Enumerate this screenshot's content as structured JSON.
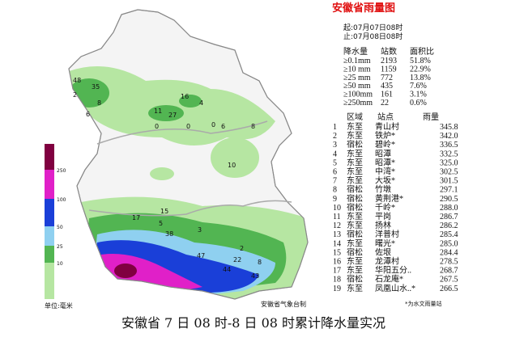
{
  "title": "安徽省雨量图",
  "period": {
    "start": "起:07月07日08时",
    "end": "止:07月08日08时"
  },
  "stats": {
    "header": [
      "降水量",
      "站数",
      "面积比"
    ],
    "rows": [
      [
        "≥0.1mm",
        "2193",
        "51.8%"
      ],
      [
        "≥10 mm",
        "1159",
        "22.9%"
      ],
      [
        "≥25 mm",
        "772",
        "13.8%"
      ],
      [
        "≥50 mm",
        "435",
        "7.6%"
      ],
      [
        "≥100mm",
        "161",
        "3.1%"
      ],
      [
        "≥250mm",
        "22",
        "0.6%"
      ]
    ]
  },
  "ranking": {
    "header": [
      "区域",
      "站点",
      "雨量"
    ],
    "rows": [
      [
        "1",
        "东至",
        "青山村",
        "345.8"
      ],
      [
        "2",
        "东至",
        "铁炉*",
        "342.0"
      ],
      [
        "3",
        "宿松",
        "碧岭*",
        "336.5"
      ],
      [
        "4",
        "东至",
        "昭潭",
        "332.5"
      ],
      [
        "5",
        "东至",
        "昭潭*",
        "325.0"
      ],
      [
        "6",
        "东至",
        "中湾*",
        "302.5"
      ],
      [
        "7",
        "东至",
        "大坂*",
        "301.5"
      ],
      [
        "8",
        "宿松",
        "竹墩",
        "297.1"
      ],
      [
        "9",
        "宿松",
        "黄荆港*",
        "290.5"
      ],
      [
        "10",
        "宿松",
        "千岭*",
        "288.0"
      ],
      [
        "11",
        "东至",
        "平岗",
        "286.7"
      ],
      [
        "12",
        "东至",
        "扬林",
        "286.2"
      ],
      [
        "13",
        "宿松",
        "洋普村",
        "285.4"
      ],
      [
        "14",
        "东至",
        "曙光*",
        "285.0"
      ],
      [
        "15",
        "宿松",
        "佐垠",
        "284.4"
      ],
      [
        "16",
        "东至",
        "龙潭村",
        "278.5"
      ],
      [
        "17",
        "东至",
        "华阳五分..",
        "268.7"
      ],
      [
        "18",
        "宿松",
        "石龙庵*",
        "267.5"
      ],
      [
        "19",
        "东至",
        "凤凰山水..*",
        "266.5"
      ]
    ],
    "footnote": "*为水文雨量站"
  },
  "legend": {
    "labels": [
      "250",
      "100",
      "50",
      "25",
      "10"
    ],
    "unit": "单位:毫米"
  },
  "map_labels": [
    "48",
    "35",
    "2",
    "8",
    "6",
    "4",
    "16",
    "11",
    "27",
    "0",
    "0",
    "0",
    "6",
    "8",
    "10",
    "17",
    "15",
    "5",
    "38",
    "3",
    "47",
    "22",
    "44",
    "43",
    "8",
    "2"
  ],
  "agency": "安徽省气象台制",
  "caption": "安徽省 7 日 08 时-8 日 08 时累计降水量实况"
}
